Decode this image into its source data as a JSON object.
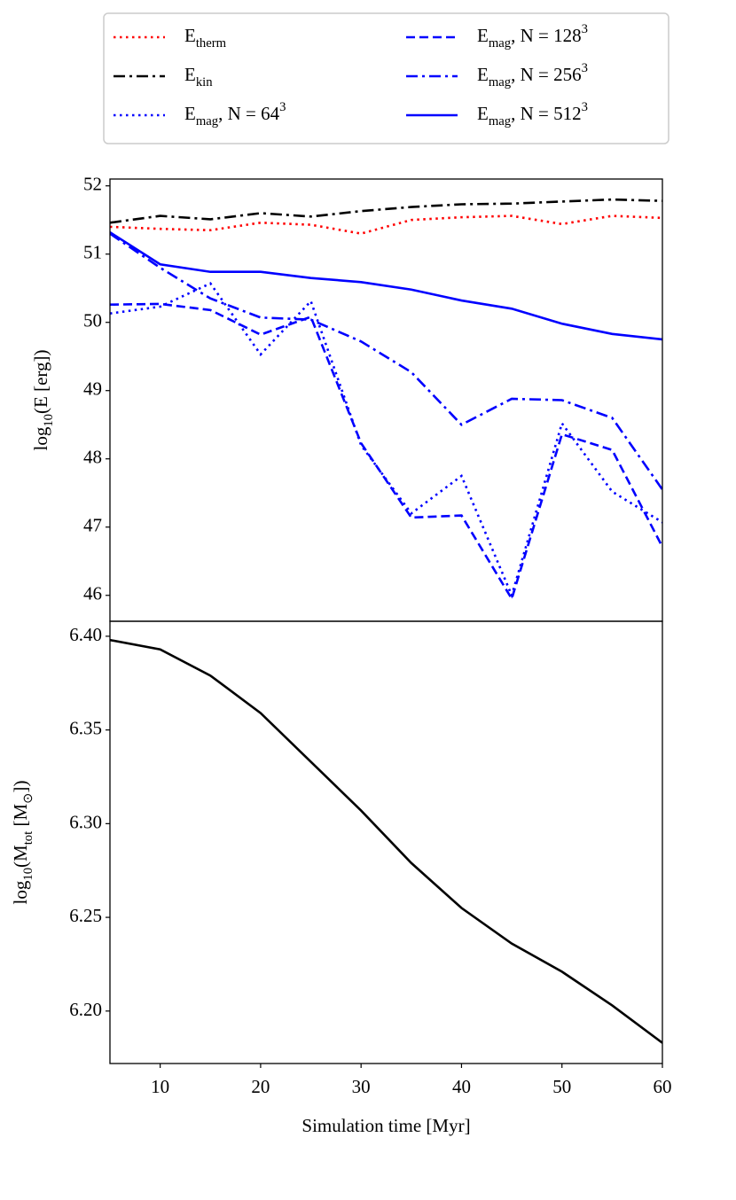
{
  "chart_data": [
    {
      "type": "line",
      "ylabel": "log_{10}(E [erg])",
      "x": [
        5,
        10,
        15,
        20,
        25,
        30,
        35,
        40,
        45,
        50,
        55,
        60
      ],
      "xlim": [
        5,
        60
      ],
      "ylim": [
        45.62,
        52.1
      ],
      "yticks": [
        46,
        47,
        48,
        49,
        50,
        51,
        52
      ],
      "legend": "top-outside",
      "series": [
        {
          "name": "E_{therm}",
          "color": "#ff0000",
          "style": "dotted",
          "values": [
            51.4,
            51.37,
            51.35,
            51.46,
            51.43,
            51.3,
            51.5,
            51.54,
            51.56,
            51.44,
            51.56,
            51.53
          ]
        },
        {
          "name": "E_{kin}",
          "color": "#000000",
          "style": "dashdot",
          "values": [
            51.46,
            51.56,
            51.51,
            51.6,
            51.55,
            51.63,
            51.69,
            51.73,
            51.74,
            51.77,
            51.8,
            51.78
          ]
        },
        {
          "name": "E_{mag}, N = 64^{3}",
          "color": "#0000ff",
          "style": "dotted",
          "values": [
            50.13,
            50.23,
            50.57,
            49.53,
            50.31,
            48.2,
            47.2,
            47.75,
            46.0,
            48.52,
            47.52,
            47.07
          ]
        },
        {
          "name": "E_{mag}, N = 128^{3}",
          "color": "#0000ff",
          "style": "dashed",
          "values": [
            50.26,
            50.27,
            50.18,
            49.82,
            50.08,
            48.23,
            47.14,
            47.17,
            45.95,
            48.36,
            48.13,
            46.71
          ]
        },
        {
          "name": "E_{mag}, N = 256^{3}",
          "color": "#0000ff",
          "style": "dashdot",
          "values": [
            51.3,
            50.8,
            50.35,
            50.07,
            50.04,
            49.72,
            49.27,
            48.5,
            48.88,
            48.86,
            48.6,
            47.55
          ]
        },
        {
          "name": "E_{mag}, N = 512^{3}",
          "color": "#0000ff",
          "style": "solid",
          "values": [
            51.32,
            50.85,
            50.74,
            50.74,
            50.65,
            50.59,
            50.48,
            50.32,
            50.2,
            49.98,
            49.83,
            49.75
          ]
        }
      ]
    },
    {
      "type": "line",
      "ylabel": "log_{10}(M_{tot} [M_{⊙}])",
      "xlabel": "Simulation time [Myr]",
      "x": [
        5,
        10,
        15,
        20,
        25,
        30,
        35,
        40,
        45,
        50,
        55,
        60
      ],
      "xlim": [
        5,
        60
      ],
      "xticks": [
        10,
        20,
        30,
        40,
        50,
        60
      ],
      "ylim": [
        6.172,
        6.408
      ],
      "yticks": [
        {
          "value": 6.2,
          "label": "6.20"
        },
        6.25,
        {
          "value": 6.3,
          "label": "6.30"
        },
        6.35,
        {
          "value": 6.4,
          "label": "6.40"
        }
      ],
      "series": [
        {
          "color": "#000000",
          "style": "solid",
          "values": [
            6.398,
            6.393,
            6.379,
            6.359,
            6.333,
            6.307,
            6.279,
            6.255,
            6.236,
            6.221,
            6.203,
            6.183
          ]
        }
      ]
    }
  ]
}
